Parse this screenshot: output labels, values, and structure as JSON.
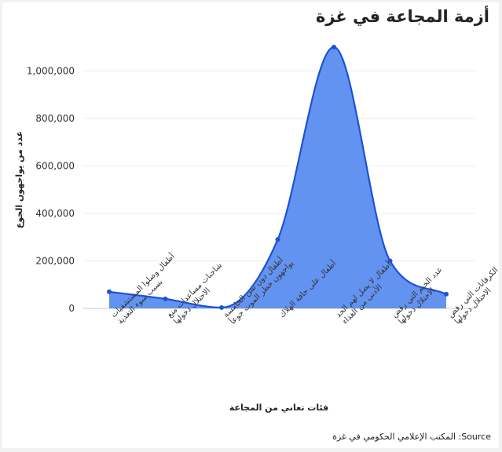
{
  "chart_data": {
    "type": "area",
    "title": "أزمة المجاعة في غزة",
    "xlabel": "فئات تعاني من المجاعة",
    "ylabel": "عدد من يواجهون الجوع",
    "source": "المكتب الإعلامي الحكومي في غزة :Source",
    "categories": [
      "أطفال وصلوا المستشفيات بسبب سوء التغذية",
      "شاحنات مساعدات منع الاحتلال دخولها",
      "أطفال دون سن الخامسة يواجهون خطر الموت جوعاً",
      "أطفال على حافة الهلاك",
      "أطفال لا يصل لهم الحد الأدنى من الغذاء",
      "عدد الخيم التي رفض الاحتلال دخولها",
      "عدد الكرفانات التي رفض الاحتلال دخولها"
    ],
    "values": [
      70000,
      40000,
      3500,
      290000,
      1100000,
      200000,
      60000
    ],
    "ylim": [
      0,
      1100000
    ],
    "yticks": [
      0,
      200000,
      400000,
      600000,
      800000,
      1000000
    ],
    "ytick_labels": [
      "0",
      "200,000",
      "400,000",
      "600,000",
      "800,000",
      "1,000,000"
    ],
    "grid": true,
    "colors": {
      "fill": "#5b8def",
      "line": "#1d52d6"
    }
  }
}
